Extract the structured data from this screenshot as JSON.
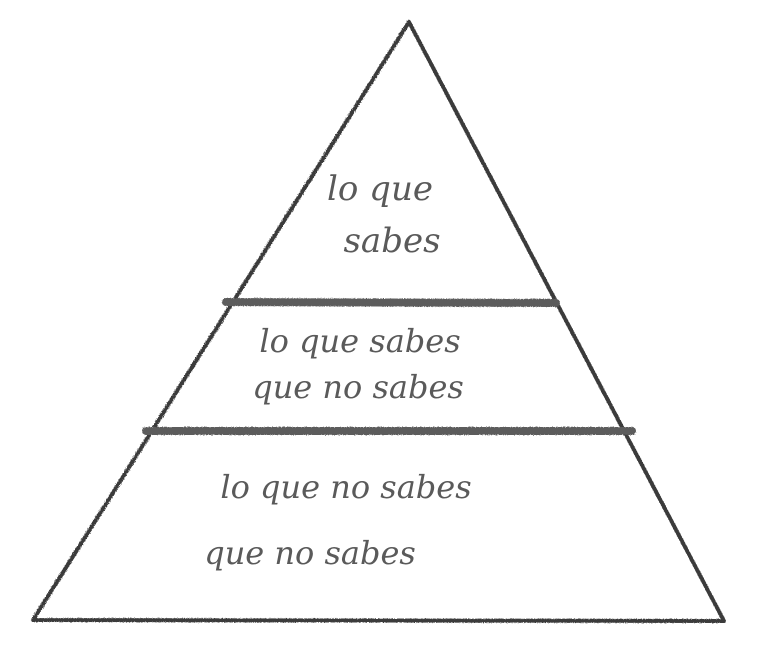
{
  "diagram": {
    "type": "pyramid",
    "tiers": [
      {
        "lines": [
          "lo que",
          "sabes"
        ]
      },
      {
        "lines": [
          "lo que sabes",
          "que no sabes"
        ]
      },
      {
        "lines": [
          "lo que no sabes",
          "que no sabes"
        ]
      }
    ],
    "style": {
      "stroke_color": "#3a3a3a",
      "divider_color": "#5c5c5c",
      "text_color": "#5a5a5a",
      "background": "#ffffff"
    }
  }
}
